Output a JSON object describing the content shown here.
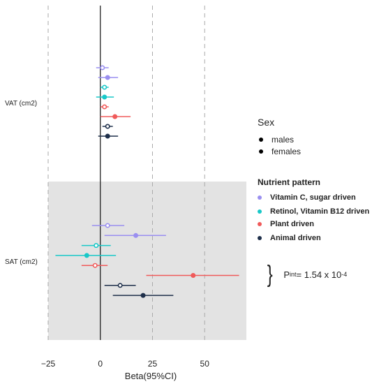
{
  "chart_data": {
    "type": "forest",
    "xlabel": "Beta(95%CI)",
    "xticks": [
      -25,
      0,
      25,
      50
    ],
    "xlim": [
      -25,
      70
    ],
    "groups": [
      {
        "label": "VAT (cm2)",
        "shaded": false
      },
      {
        "label": "SAT (cm2)",
        "shaded": true
      }
    ],
    "sex_legend": {
      "title": "Sex",
      "items": [
        "males",
        "females"
      ]
    },
    "pattern_legend": {
      "title": "Nutrient pattern",
      "items": [
        {
          "label": "Vitamin C, sugar driven",
          "color": "#9a8ff0"
        },
        {
          "label": "Retinol, Vitamin B12 driven",
          "color": "#18c8c8"
        },
        {
          "label": "Plant driven",
          "color": "#f05a5a"
        },
        {
          "label": "Animal driven",
          "color": "#1e2f4a"
        }
      ]
    },
    "rows": [
      {
        "group": "VAT (cm2)",
        "pattern": "Vitamin C, sugar driven",
        "sex": "males",
        "beta": 1,
        "lo": -2,
        "hi": 4
      },
      {
        "group": "VAT (cm2)",
        "pattern": "Vitamin C, sugar driven",
        "sex": "females",
        "beta": 3.5,
        "lo": -1,
        "hi": 8.5
      },
      {
        "group": "VAT (cm2)",
        "pattern": "Retinol, Vitamin B12 driven",
        "sex": "males",
        "beta": 2,
        "lo": 0,
        "hi": 4
      },
      {
        "group": "VAT (cm2)",
        "pattern": "Retinol, Vitamin B12 driven",
        "sex": "females",
        "beta": 2,
        "lo": -2,
        "hi": 6.5
      },
      {
        "group": "VAT (cm2)",
        "pattern": "Plant driven",
        "sex": "males",
        "beta": 2,
        "lo": 0,
        "hi": 4
      },
      {
        "group": "VAT (cm2)",
        "pattern": "Plant driven",
        "sex": "females",
        "beta": 7,
        "lo": 0,
        "hi": 14.5
      },
      {
        "group": "VAT (cm2)",
        "pattern": "Animal driven",
        "sex": "males",
        "beta": 3.5,
        "lo": 1,
        "hi": 6
      },
      {
        "group": "VAT (cm2)",
        "pattern": "Animal driven",
        "sex": "females",
        "beta": 3.5,
        "lo": -1,
        "hi": 8.5
      },
      {
        "group": "SAT (cm2)",
        "pattern": "Vitamin C, sugar driven",
        "sex": "males",
        "beta": 3.5,
        "lo": -4,
        "hi": 11.5
      },
      {
        "group": "SAT (cm2)",
        "pattern": "Vitamin C, sugar driven",
        "sex": "females",
        "beta": 17,
        "lo": 2,
        "hi": 31.5
      },
      {
        "group": "SAT (cm2)",
        "pattern": "Retinol, Vitamin B12 driven",
        "sex": "males",
        "beta": -2,
        "lo": -9,
        "hi": 5
      },
      {
        "group": "SAT (cm2)",
        "pattern": "Retinol, Vitamin B12 driven",
        "sex": "females",
        "beta": -6.5,
        "lo": -21.5,
        "hi": 7.5
      },
      {
        "group": "SAT (cm2)",
        "pattern": "Plant driven",
        "sex": "males",
        "beta": -2.5,
        "lo": -9,
        "hi": 3.5
      },
      {
        "group": "SAT (cm2)",
        "pattern": "Plant driven",
        "sex": "females",
        "beta": 44.5,
        "lo": 22,
        "hi": 66.5
      },
      {
        "group": "SAT (cm2)",
        "pattern": "Animal driven",
        "sex": "males",
        "beta": 9.5,
        "lo": 2,
        "hi": 17
      },
      {
        "group": "SAT (cm2)",
        "pattern": "Animal driven",
        "sex": "females",
        "beta": 20.5,
        "lo": 6,
        "hi": 35
      }
    ],
    "annotation": {
      "prefix": "P",
      "sub": "int",
      "value": " = 1.54 x 10",
      "sup": "-4"
    },
    "grid": "dashed vertical at x ticks",
    "legend_position": "right"
  }
}
